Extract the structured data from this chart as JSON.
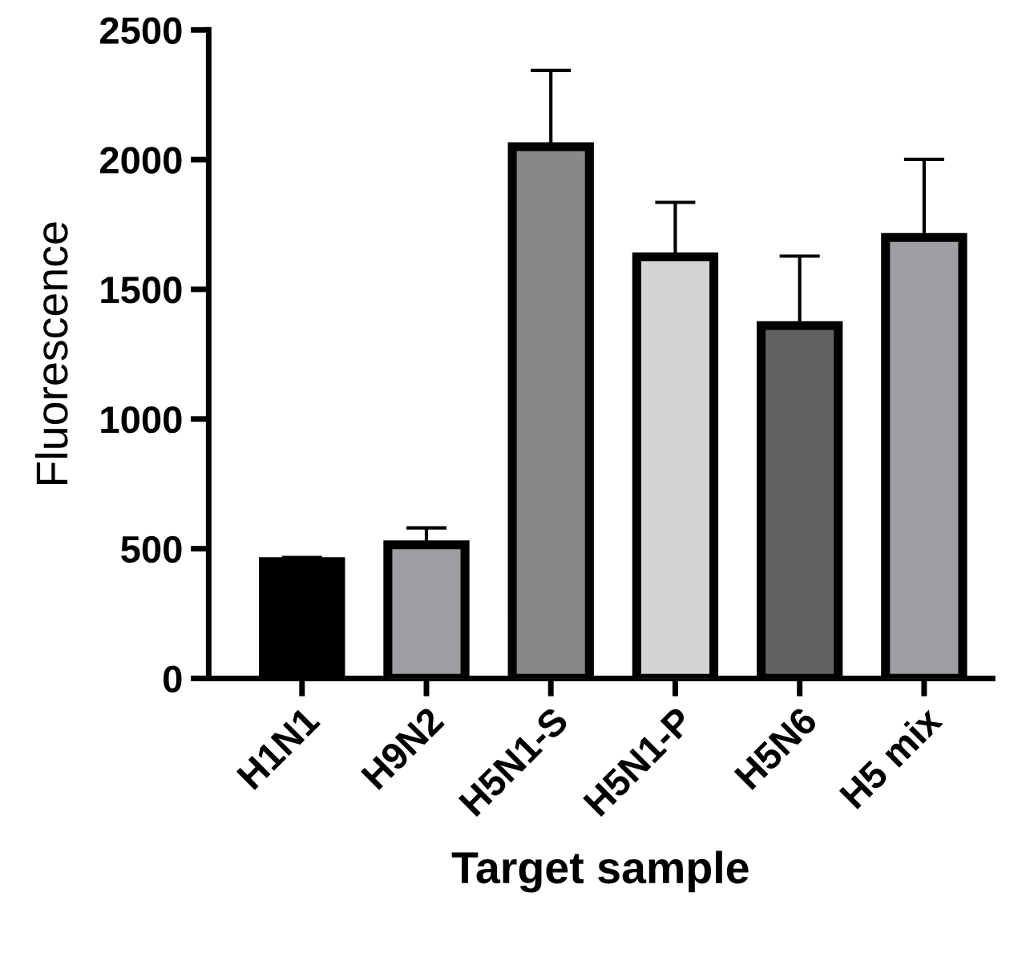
{
  "chart_data": {
    "type": "bar",
    "xlabel": "Target sample",
    "ylabel": "Fluorescence",
    "categories": [
      "H1N1",
      "H9N2",
      "H5N1-S",
      "H5N1-P",
      "H5N6",
      "H5 mix"
    ],
    "values": [
      450,
      515,
      2050,
      1625,
      1360,
      1700
    ],
    "errors": [
      [
        450,
        466
      ],
      [
        515,
        580
      ],
      [
        2050,
        2344
      ],
      [
        1625,
        1835
      ],
      [
        1360,
        1628
      ],
      [
        1700,
        2001
      ]
    ],
    "colors": [
      "#000000",
      "#9e9ea2",
      "#888888",
      "#d3d3d3",
      "#626262",
      "#9e9ea2"
    ],
    "ylim": [
      0,
      2500
    ],
    "yticks": [
      0,
      500,
      1000,
      1500,
      2000,
      2500
    ],
    "grid": false,
    "legend": false
  }
}
